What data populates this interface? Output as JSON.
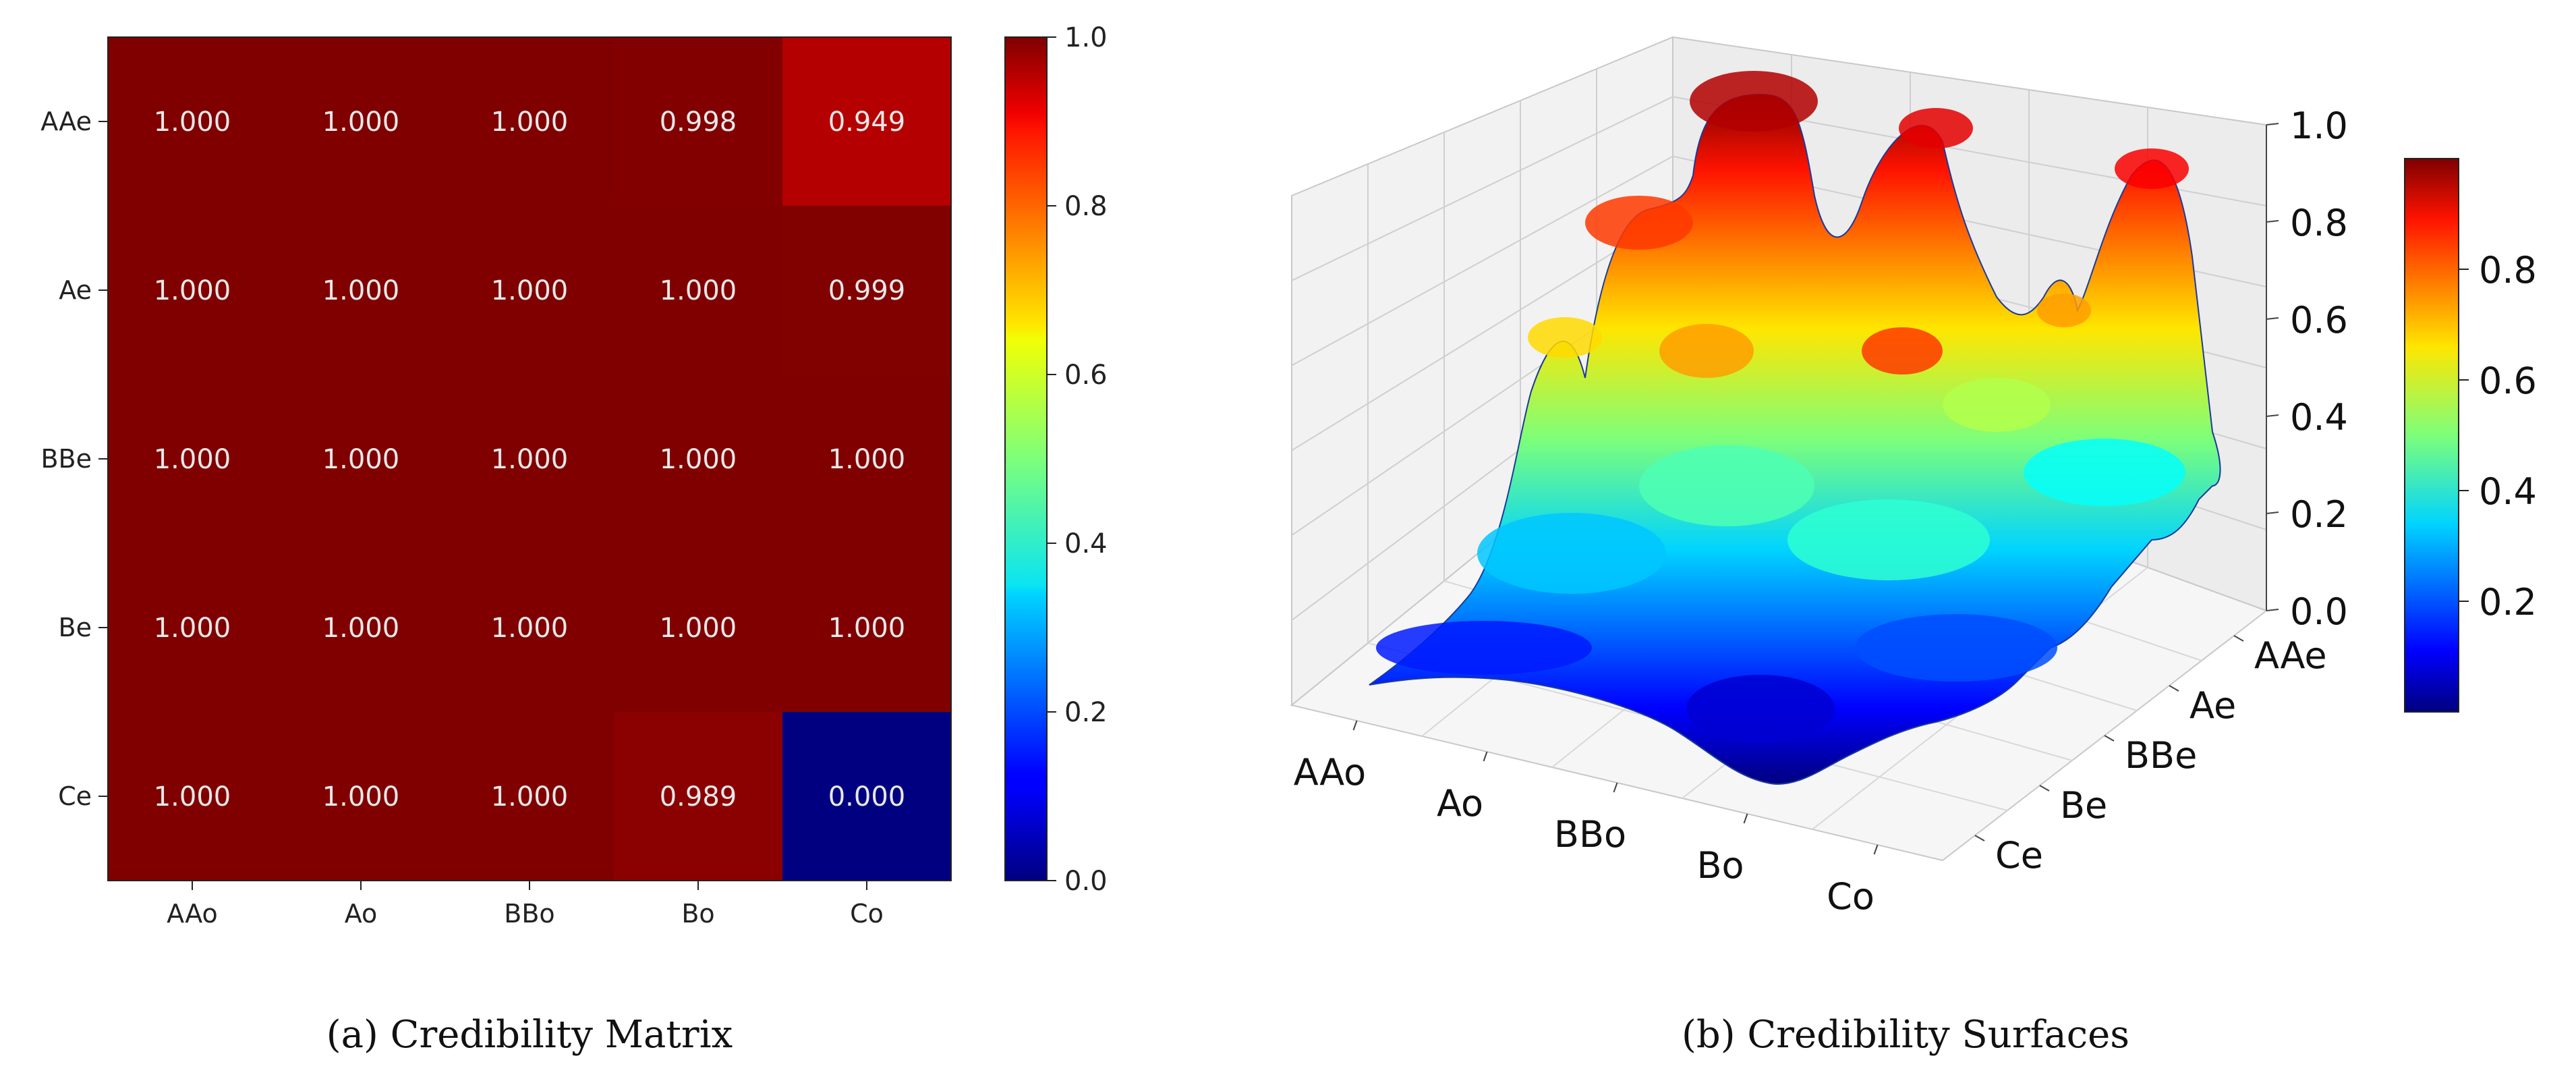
{
  "chart_data": [
    {
      "type": "heatmap",
      "caption": "(a) Credibility Matrix",
      "rows": [
        "AAe",
        "Ae",
        "BBe",
        "Be",
        "Ce"
      ],
      "columns": [
        "AAo",
        "Ao",
        "BBo",
        "Bo",
        "Co"
      ],
      "values": [
        [
          1.0,
          1.0,
          1.0,
          0.998,
          0.949
        ],
        [
          1.0,
          1.0,
          1.0,
          1.0,
          0.999
        ],
        [
          1.0,
          1.0,
          1.0,
          1.0,
          1.0
        ],
        [
          1.0,
          1.0,
          1.0,
          1.0,
          1.0
        ],
        [
          1.0,
          1.0,
          1.0,
          0.989,
          0.0
        ]
      ],
      "cell_labels": [
        [
          "1.000",
          "1.000",
          "1.000",
          "0.998",
          "0.949"
        ],
        [
          "1.000",
          "1.000",
          "1.000",
          "1.000",
          "0.999"
        ],
        [
          "1.000",
          "1.000",
          "1.000",
          "1.000",
          "1.000"
        ],
        [
          "1.000",
          "1.000",
          "1.000",
          "1.000",
          "1.000"
        ],
        [
          "1.000",
          "1.000",
          "1.000",
          "0.989",
          "0.000"
        ]
      ],
      "colormap": "jet",
      "colorbar": {
        "min": 0.0,
        "max": 1.0,
        "ticks": [
          "0.0",
          "0.2",
          "0.4",
          "0.6",
          "0.8",
          "1.0"
        ]
      }
    },
    {
      "type": "surface",
      "caption": "(b) Credibility Surfaces",
      "x_tick_labels": [
        "AAo",
        "Ao",
        "BBo",
        "Bo",
        "Co"
      ],
      "y_tick_labels": [
        "AAe",
        "Ae",
        "BBe",
        "Be",
        "Ce"
      ],
      "z_range": [
        0.0,
        1.0
      ],
      "z_ticks": [
        "0.0",
        "0.2",
        "0.4",
        "0.6",
        "0.8",
        "1.0"
      ],
      "colormap": "jet",
      "colorbar": {
        "min": 0.0,
        "max": 1.0,
        "ticks": [
          "0.2",
          "0.4",
          "0.6",
          "0.8"
        ]
      }
    }
  ]
}
